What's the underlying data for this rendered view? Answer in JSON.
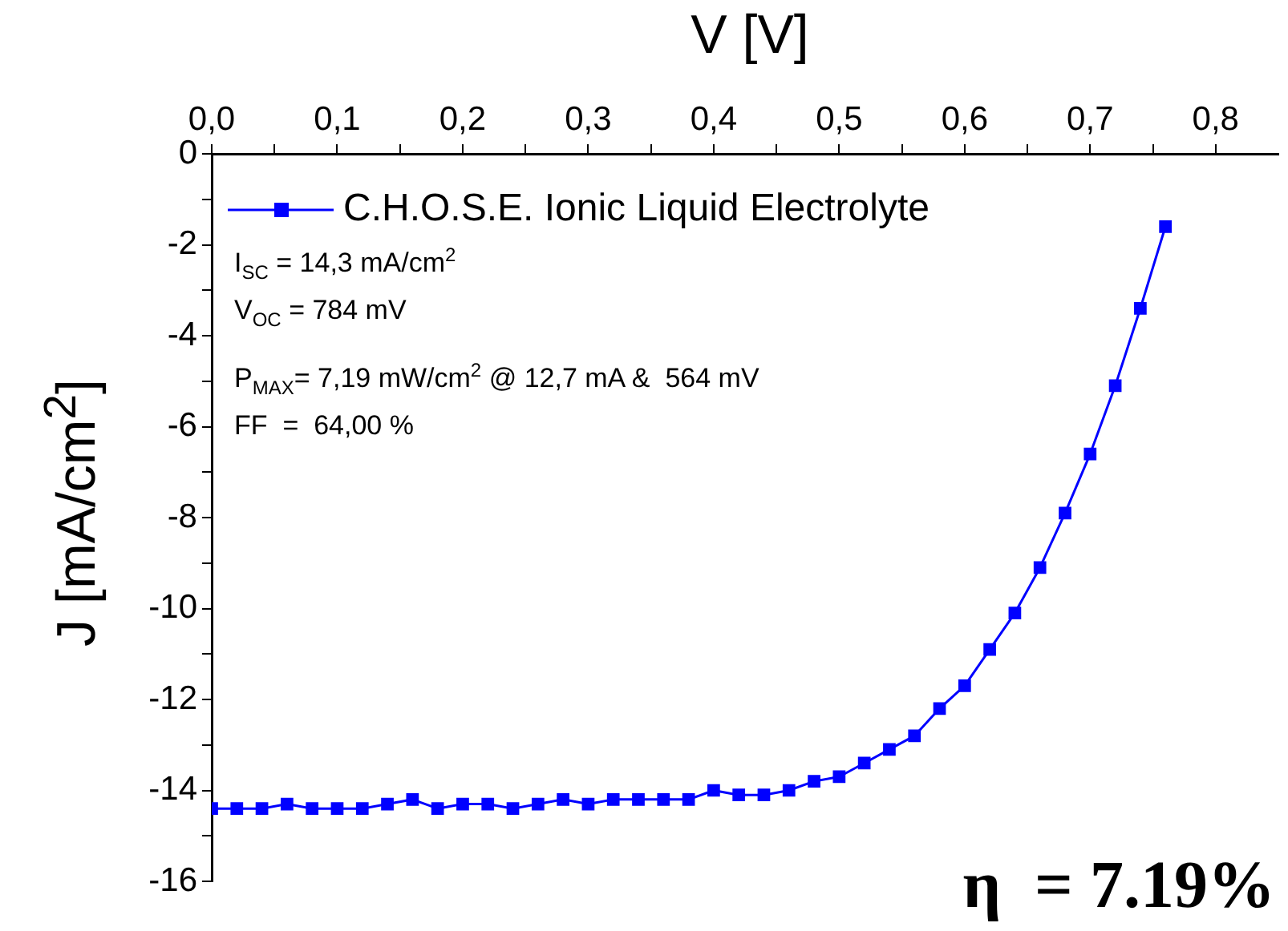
{
  "chart_data": {
    "type": "line",
    "xlabel": "V [V]",
    "ylabel": "J [mA/cm$^{2}$]",
    "x": [
      0,
      0.02,
      0.04,
      0.06,
      0.08,
      0.1,
      0.12,
      0.14,
      0.16,
      0.18,
      0.2,
      0.22,
      0.24,
      0.26,
      0.28,
      0.3,
      0.32,
      0.34,
      0.36,
      0.38,
      0.4,
      0.42,
      0.44,
      0.46,
      0.48,
      0.5,
      0.52,
      0.54,
      0.56,
      0.58,
      0.6,
      0.62,
      0.64,
      0.66,
      0.68,
      0.7,
      0.72,
      0.74,
      0.76
    ],
    "series": [
      {
        "name": "C.H.O.S.E. Ionic Liquid Electrolyte",
        "color": "#0000ff",
        "values": [
          -14.4,
          -14.4,
          -14.4,
          -14.3,
          -14.4,
          -14.4,
          -14.4,
          -14.3,
          -14.2,
          -14.4,
          -14.3,
          -14.3,
          -14.4,
          -14.3,
          -14.2,
          -14.3,
          -14.2,
          -14.2,
          -14.2,
          -14.2,
          -14.0,
          -14.1,
          -14.1,
          -14.0,
          -13.8,
          -13.7,
          -13.4,
          -13.1,
          -12.8,
          -12.2,
          -11.7,
          -10.9,
          -10.1,
          -9.1,
          -7.9,
          -6.6,
          -5.1,
          -3.4,
          -1.6
        ]
      }
    ],
    "xlim": [
      0,
      0.85
    ],
    "xticks": [
      {
        "value": 0,
        "label": "0,0"
      },
      {
        "value": 0.05,
        "label": null
      },
      {
        "value": 0.1,
        "label": "0,1"
      },
      {
        "value": 0.15,
        "label": null
      },
      {
        "value": 0.2,
        "label": "0,2"
      },
      {
        "value": 0.25,
        "label": null
      },
      {
        "value": 0.3,
        "label": "0,3"
      },
      {
        "value": 0.35,
        "label": null
      },
      {
        "value": 0.4,
        "label": "0,4"
      },
      {
        "value": 0.45,
        "label": null
      },
      {
        "value": 0.5,
        "label": "0,5"
      },
      {
        "value": 0.55,
        "label": null
      },
      {
        "value": 0.6,
        "label": "0,6"
      },
      {
        "value": 0.65,
        "label": null
      },
      {
        "value": 0.7,
        "label": "0,7"
      },
      {
        "value": 0.75,
        "label": null
      },
      {
        "value": 0.8,
        "label": "0,8"
      }
    ],
    "ylim": [
      -16,
      0
    ],
    "yticks": [
      -16,
      {
        "value": -15,
        "label": null
      },
      -14,
      {
        "value": -13,
        "label": null
      },
      -12,
      {
        "value": -11,
        "label": null
      },
      -10,
      {
        "value": -9,
        "label": null
      },
      -8,
      {
        "value": -7,
        "label": null
      },
      -6,
      {
        "value": -5,
        "label": null
      },
      -4,
      {
        "value": -3,
        "label": null
      },
      -2,
      {
        "value": -1,
        "label": null
      },
      0
    ],
    "annotations": [
      "I$_{SC}$ = 14,3 mA/cm$^{2}$",
      "V$_{OC}$ = 784 mV",
      "P$_{MAX}$= 7,19 mW/cm$^{2}$ @ 12,7 mA &  564 mV",
      "FF  =  64,00 %",
      "η  = 7.19%"
    ],
    "legend": "top left",
    "marker": "square",
    "line_style": "solid",
    "grid": false
  }
}
